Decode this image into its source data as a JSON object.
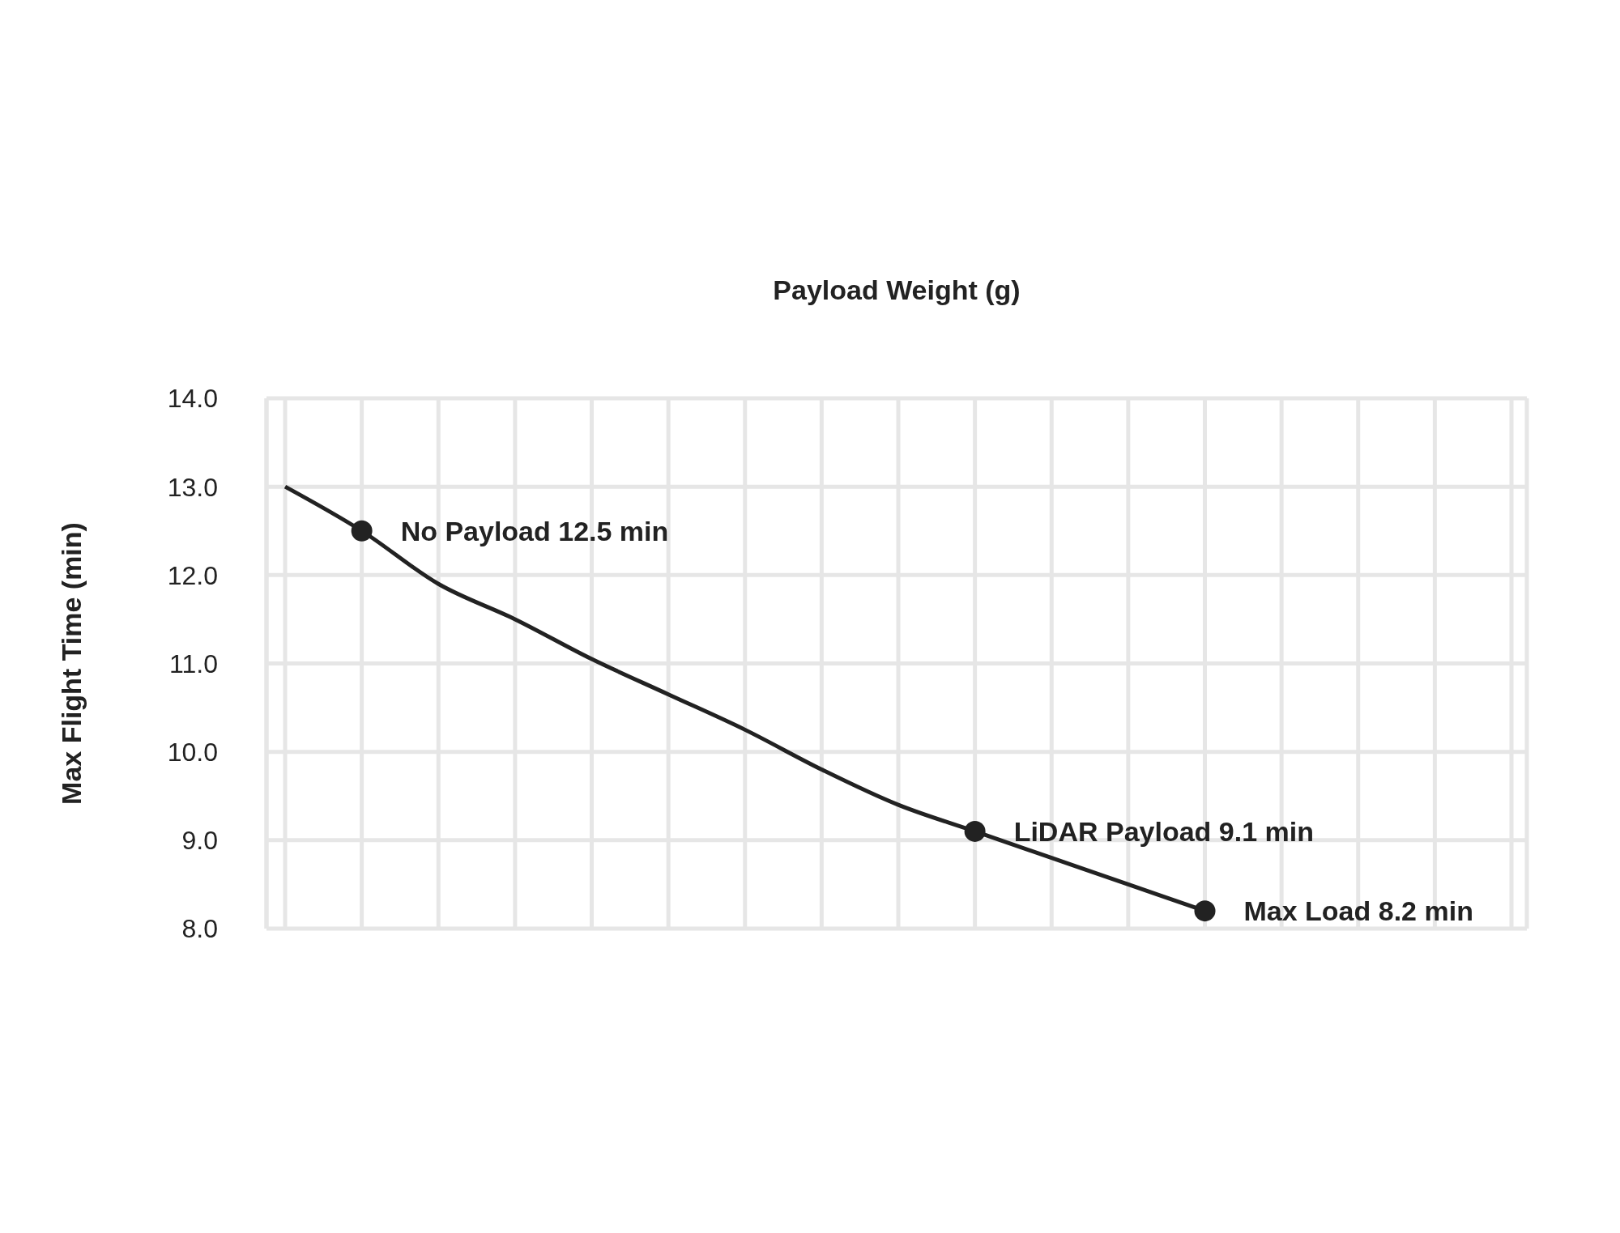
{
  "chart_data": {
    "type": "line",
    "xlabel": "Payload Weight (g)",
    "ylabel": "Max Flight Time (min)",
    "categories": [
      null,
      null,
      null,
      null,
      null,
      null,
      null,
      null,
      null,
      null,
      null,
      null,
      null,
      null,
      null,
      null,
      null
    ],
    "ylim": [
      8,
      14
    ],
    "yticks": [
      {
        "value": 8,
        "label": "8.0"
      },
      {
        "value": 9,
        "label": "9.0"
      },
      {
        "value": 10,
        "label": "10.0"
      },
      {
        "value": 11,
        "label": "11.0"
      },
      {
        "value": 12,
        "label": "12.0"
      },
      {
        "value": 13,
        "label": "13.0"
      },
      {
        "value": 14,
        "label": "14.0"
      }
    ],
    "tick_labels": "y",
    "grid": true,
    "line_style": "solid",
    "series": [
      {
        "color": "#222222",
        "values": [
          13.0,
          12.5,
          11.9,
          11.5,
          11.05,
          10.65,
          10.25,
          9.8,
          9.4,
          9.1,
          8.8,
          8.5,
          8.2,
          null,
          null,
          null,
          null
        ],
        "value_labels": [
          null,
          "No Payload 12.5 min",
          null,
          null,
          null,
          null,
          null,
          null,
          null,
          "LiDAR Payload 9.1 min",
          null,
          null,
          "Max Load 8.2 min",
          null,
          null,
          null,
          null
        ]
      }
    ]
  }
}
